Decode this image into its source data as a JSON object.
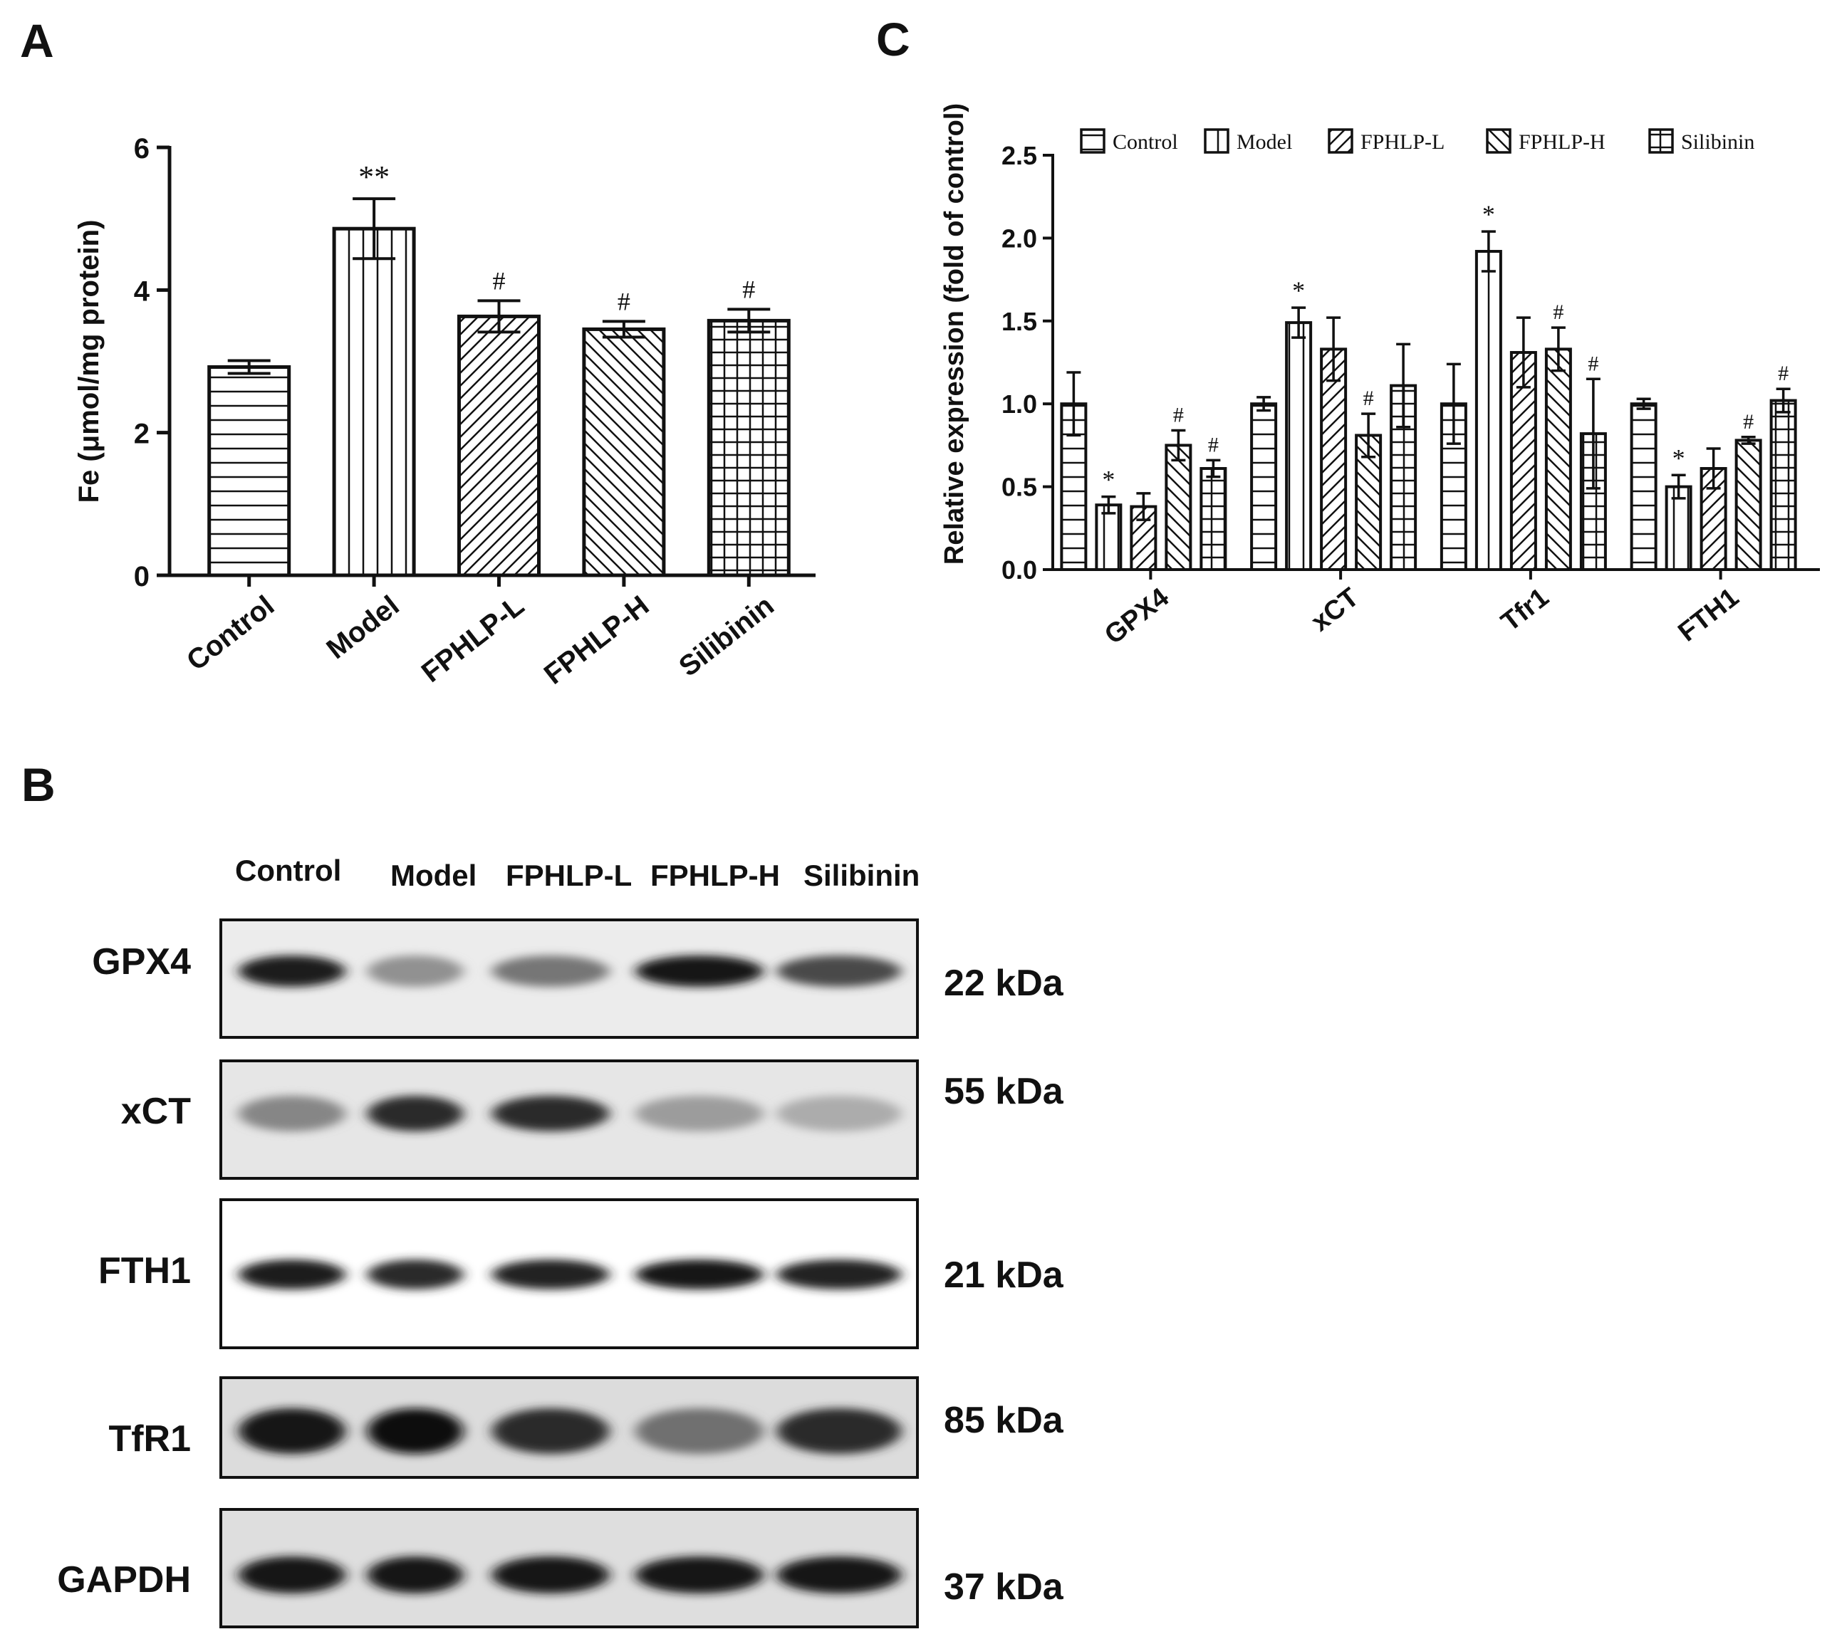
{
  "panels": {
    "a": "A",
    "b": "B",
    "c": "C"
  },
  "chart_data": [
    {
      "type": "bar",
      "panel": "A",
      "ylabel": "Fe (μmol/mg protein)",
      "ylim": [
        0,
        6
      ],
      "yticks": [
        "0",
        "2",
        "4",
        "6"
      ],
      "categories": [
        "Control",
        "Model",
        "FPHLP-L",
        "FPHLP-H",
        "Silibinin"
      ],
      "values": [
        2.92,
        4.86,
        3.63,
        3.45,
        3.57
      ],
      "errors": [
        0.09,
        0.42,
        0.22,
        0.11,
        0.16
      ],
      "annotations": [
        "",
        "**",
        "#",
        "#",
        "#"
      ],
      "patterns": [
        "horizontal",
        "vertical",
        "diag-up",
        "diag-down",
        "grid"
      ]
    },
    {
      "type": "bar",
      "panel": "C",
      "ylabel": "Relative expression (fold of control)",
      "ylim": [
        0,
        2.5
      ],
      "yticks": [
        "0.0",
        "0.5",
        "1.0",
        "1.5",
        "2.0",
        "2.5"
      ],
      "categories": [
        "GPX4",
        "xCT",
        "Tfr1",
        "FTH1"
      ],
      "legend_position": "top",
      "series": [
        {
          "name": "Control",
          "pattern": "horizontal",
          "values": [
            1.0,
            1.0,
            1.0,
            1.0
          ],
          "errors": [
            0.19,
            0.04,
            0.24,
            0.03
          ],
          "annotations": [
            "",
            "",
            "",
            ""
          ]
        },
        {
          "name": "Model",
          "pattern": "vertical",
          "values": [
            0.39,
            1.49,
            1.92,
            0.5
          ],
          "errors": [
            0.05,
            0.09,
            0.12,
            0.07
          ],
          "annotations": [
            "*",
            "*",
            "*",
            "*"
          ]
        },
        {
          "name": "FPHLP-L",
          "pattern": "diag-up",
          "values": [
            0.38,
            1.33,
            1.31,
            0.61
          ],
          "errors": [
            0.08,
            0.19,
            0.21,
            0.12
          ],
          "annotations": [
            "",
            "",
            "",
            ""
          ]
        },
        {
          "name": "FPHLP-H",
          "pattern": "diag-down",
          "values": [
            0.75,
            0.81,
            1.33,
            0.78
          ],
          "errors": [
            0.09,
            0.13,
            0.13,
            0.02
          ],
          "annotations": [
            "#",
            "#",
            "#",
            "#"
          ]
        },
        {
          "name": "Silibinin",
          "pattern": "grid",
          "values": [
            0.61,
            1.11,
            0.82,
            1.02
          ],
          "errors": [
            0.05,
            0.25,
            0.33,
            0.07
          ],
          "annotations": [
            "#",
            "",
            "#",
            "#"
          ]
        }
      ]
    }
  ],
  "western_blot": {
    "lanes": [
      "Control",
      "Model",
      "FPHLP-L",
      "FPHLP-H",
      "Silibinin"
    ],
    "rows": [
      {
        "protein": "GPX4",
        "kda": "22 kDa",
        "intensities": [
          0.92,
          0.4,
          0.52,
          0.95,
          0.72
        ]
      },
      {
        "protein": "xCT",
        "kda": "55 kDa",
        "intensities": [
          0.45,
          0.85,
          0.85,
          0.35,
          0.28
        ]
      },
      {
        "protein": "FTH1",
        "kda": "21 kDa",
        "intensities": [
          0.92,
          0.85,
          0.9,
          0.95,
          0.9
        ]
      },
      {
        "protein": "TfR1",
        "kda": "85 kDa",
        "intensities": [
          0.95,
          0.98,
          0.85,
          0.55,
          0.85
        ]
      },
      {
        "protein": "GAPDH",
        "kda": "37 kDa",
        "intensities": [
          0.95,
          0.95,
          0.95,
          0.95,
          0.95
        ]
      }
    ]
  }
}
